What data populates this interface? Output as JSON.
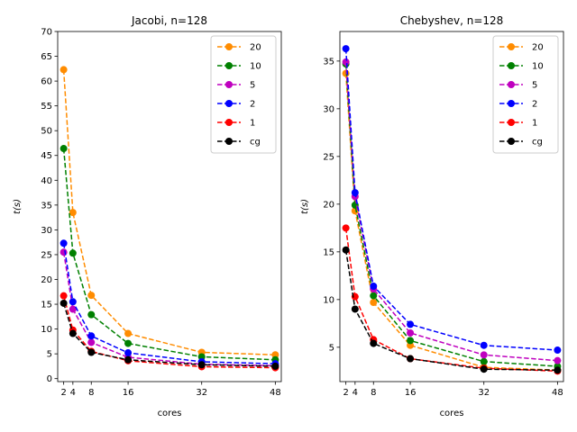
{
  "chart_data": [
    {
      "type": "line",
      "title": "Jacobi, n=128",
      "xlabel": "cores",
      "ylabel": "t(s)",
      "x": [
        2,
        4,
        8,
        16,
        32,
        48
      ],
      "xticks": [
        2,
        4,
        8,
        16,
        32,
        48
      ],
      "xlim": [
        0.7,
        49.3
      ],
      "ylim": [
        -0.6,
        70
      ],
      "yticks": [
        0,
        5,
        10,
        15,
        20,
        25,
        30,
        35,
        40,
        45,
        50,
        55,
        60,
        65,
        70
      ],
      "legend_position": "top-right",
      "series": [
        {
          "name": "20",
          "color": "#ff8c00",
          "values": [
            62.3,
            33.5,
            16.8,
            9.1,
            5.3,
            4.8
          ]
        },
        {
          "name": "10",
          "color": "#008000",
          "values": [
            46.4,
            25.3,
            12.9,
            7.1,
            4.4,
            3.8
          ]
        },
        {
          "name": "5",
          "color": "#bf00bf",
          "values": [
            25.5,
            14.0,
            7.3,
            4.3,
            2.9,
            2.6
          ]
        },
        {
          "name": "2",
          "color": "#0000ff",
          "values": [
            27.3,
            15.5,
            8.6,
            5.2,
            3.4,
            3.0
          ]
        },
        {
          "name": "1",
          "color": "#ff0000",
          "values": [
            16.7,
            9.8,
            5.5,
            3.6,
            2.4,
            2.2
          ]
        },
        {
          "name": "cg",
          "color": "#000000",
          "values": [
            15.2,
            9.1,
            5.3,
            3.8,
            2.8,
            2.5
          ]
        }
      ]
    },
    {
      "type": "line",
      "title": "Chebyshev, n=128",
      "xlabel": "cores",
      "ylabel": "t(s)",
      "x": [
        2,
        4,
        8,
        16,
        32,
        48
      ],
      "xticks": [
        2,
        4,
        8,
        16,
        32,
        48
      ],
      "xlim": [
        0.7,
        49.3
      ],
      "ylim": [
        1.4,
        38.1
      ],
      "yticks": [
        5,
        10,
        15,
        20,
        25,
        30,
        35
      ],
      "legend_position": "top-right",
      "series": [
        {
          "name": "20",
          "color": "#ff8c00",
          "values": [
            33.7,
            19.3,
            9.7,
            5.2,
            2.9,
            2.6
          ]
        },
        {
          "name": "10",
          "color": "#008000",
          "values": [
            34.7,
            19.9,
            10.4,
            5.7,
            3.5,
            3.0
          ]
        },
        {
          "name": "5",
          "color": "#bf00bf",
          "values": [
            34.9,
            20.8,
            11.1,
            6.5,
            4.2,
            3.6
          ]
        },
        {
          "name": "2",
          "color": "#0000ff",
          "values": [
            36.3,
            21.2,
            11.4,
            7.4,
            5.2,
            4.7
          ]
        },
        {
          "name": "1",
          "color": "#ff0000",
          "values": [
            17.5,
            10.3,
            5.8,
            3.8,
            2.8,
            2.5
          ]
        },
        {
          "name": "cg",
          "color": "#000000",
          "values": [
            15.2,
            9.0,
            5.4,
            3.8,
            2.7,
            2.6
          ]
        }
      ]
    }
  ]
}
